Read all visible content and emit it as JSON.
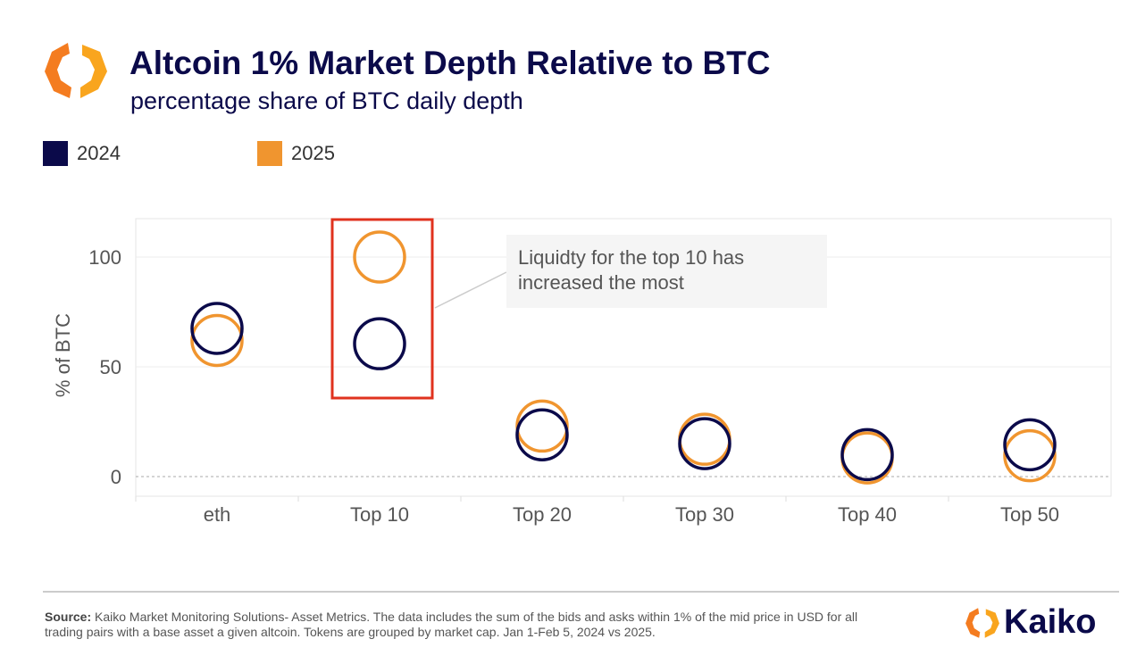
{
  "chart_data": {
    "type": "scatter",
    "title": "Altcoin 1% Market Depth Relative to BTC",
    "subtitle": "percentage share of BTC daily depth",
    "ylabel": "% of BTC",
    "xlabel": "",
    "categories": [
      "eth",
      "Top 10",
      "Top 20",
      "Top 30",
      "Top 40",
      "Top 50"
    ],
    "yticks": [
      0,
      50,
      100
    ],
    "ylim": [
      -9,
      118
    ],
    "grid": true,
    "legend_placement": "top-left",
    "series": [
      {
        "name": "2024",
        "color": "#0b0a4a",
        "values": [
          67.5,
          60.5,
          19,
          15,
          10,
          14.5
        ]
      },
      {
        "name": "2025",
        "color": "#f0952f",
        "values": [
          62,
          100,
          23,
          17,
          8.5,
          9.5
        ]
      }
    ],
    "annotation": {
      "text_line1": "Liquidty for the top 10 has",
      "text_line2": "increased the most",
      "highlight": "Top 10",
      "highlight_color": "#e0321e"
    }
  },
  "footer": {
    "source_label": "Source:",
    "source_text": " Kaiko Market Monitoring Solutions- Asset Metrics. The data includes the sum of the bids and asks within 1% of the mid price in USD for all trading pairs with a base asset  a given altcoin. Tokens are grouped by market cap. Jan 1-Feb 5, 2024 vs 2025.",
    "logo_text": "Kaiko"
  },
  "brand_colors": {
    "navy": "#0b0a4a",
    "orange": "#f0952f"
  }
}
